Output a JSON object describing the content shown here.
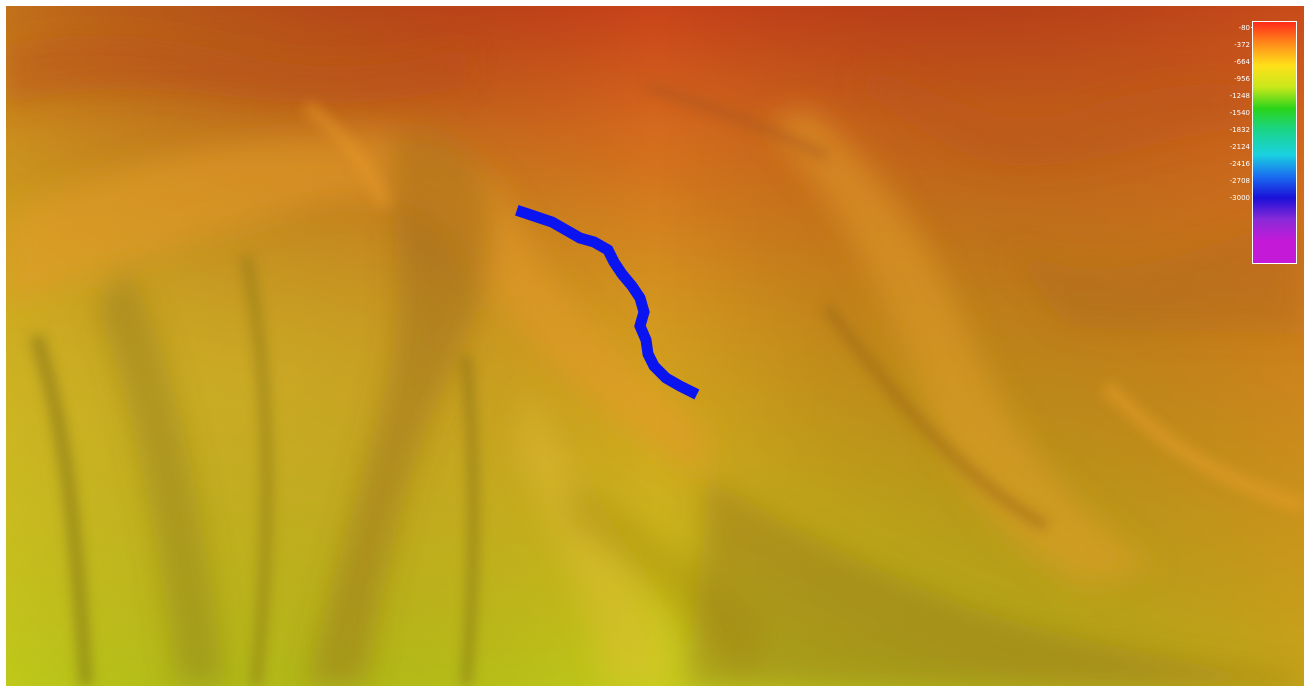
{
  "viewer": {
    "sky_color": "#c94a1a",
    "terrain_low_color": "#c6d31a",
    "terrain_mid_color": "#d48a1c",
    "terrain_high_color": "#c8461a",
    "track_color": "#0a14f0"
  },
  "legend": {
    "labels": [
      "-80",
      "-372",
      "-664",
      "-956",
      "-1248",
      "-1540",
      "-1832",
      "-2124",
      "-2416",
      "-2708",
      "-3000"
    ],
    "colors": [
      "#ff2a1a",
      "#ff8c1a",
      "#ffe01a",
      "#c8e81a",
      "#2ad41a",
      "#1ad48a",
      "#1ad2e0",
      "#1a6ef0",
      "#1a10d8",
      "#8a2ad8",
      "#c41ad8",
      "#c41ad8"
    ]
  }
}
